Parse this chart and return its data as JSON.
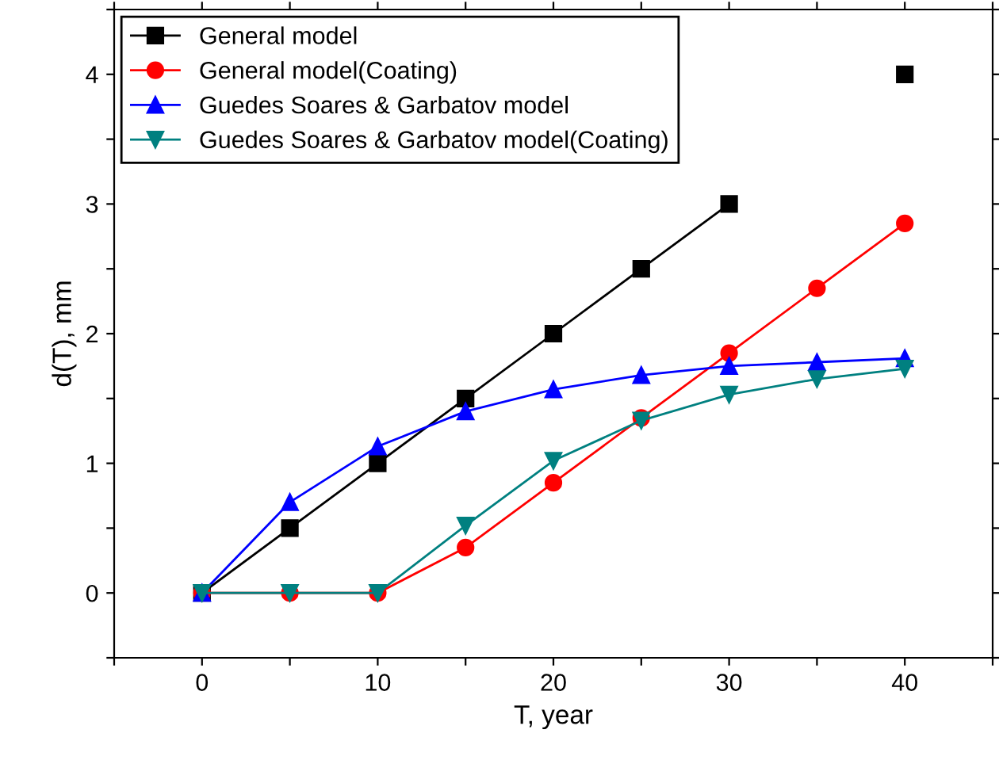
{
  "chart_data": {
    "type": "line",
    "xlabel": "T, year",
    "ylabel": "d(T), mm",
    "x": [
      0,
      5,
      10,
      15,
      20,
      25,
      30,
      35,
      40
    ],
    "series": [
      {
        "name": "General model",
        "color": "#000000",
        "marker": "square",
        "values": [
          0,
          0.5,
          1,
          1.5,
          2,
          2.5,
          3,
          null,
          4
        ]
      },
      {
        "name": "General model(Coating)",
        "color": "#ff0000",
        "marker": "circle",
        "values": [
          0,
          0,
          0,
          0.35,
          0.85,
          1.35,
          1.85,
          2.35,
          2.85
        ]
      },
      {
        "name": "Guedes Soares & Garbatov model",
        "color": "#0000ff",
        "marker": "triangle",
        "values": [
          0,
          0.7,
          1.13,
          1.4,
          1.57,
          1.68,
          1.75,
          1.78,
          1.81
        ]
      },
      {
        "name": "Guedes Soares & Garbatov model(Coating)",
        "color": "#008080",
        "marker": "triangle_down",
        "values": [
          0,
          0,
          0,
          0.52,
          1.02,
          1.33,
          1.53,
          1.65,
          1.73
        ]
      }
    ],
    "xlim": [
      -5,
      45
    ],
    "xticks": [
      {
        "value": -5,
        "label": null
      },
      0,
      {
        "value": 5,
        "label": null
      },
      10,
      {
        "value": 15,
        "label": null
      },
      20,
      {
        "value": 25,
        "label": null
      },
      30,
      {
        "value": 35,
        "label": null
      },
      40,
      {
        "value": 45,
        "label": null
      }
    ],
    "ylim": [
      -0.5,
      4.5
    ],
    "yticks": [
      {
        "value": -0.5,
        "label": null
      },
      0,
      {
        "value": 0.5,
        "label": null
      },
      1,
      {
        "value": 1.5,
        "label": null
      },
      2,
      {
        "value": 2.5,
        "label": null
      },
      3,
      {
        "value": 3.5,
        "label": null
      },
      4,
      {
        "value": 4.5,
        "label": null
      }
    ],
    "legend": "top left",
    "grid": false
  }
}
